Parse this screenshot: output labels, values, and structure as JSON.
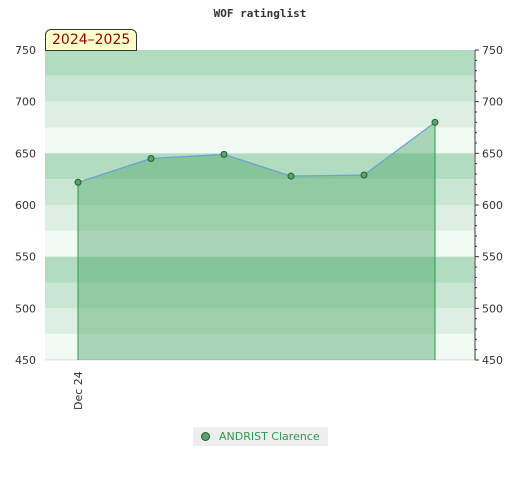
{
  "chart_data": {
    "type": "area",
    "title": "WOF ratinglist",
    "season_label": "2024–2025",
    "ylim": [
      450,
      750
    ],
    "y_ticks": [
      450,
      500,
      550,
      600,
      650,
      700,
      750
    ],
    "x_tick_labels": [
      "Dec 24"
    ],
    "series": [
      {
        "name": "ANDRIST Clarence",
        "values": [
          622,
          645,
          649,
          628,
          629,
          680
        ]
      }
    ],
    "legend_position": "bottom-center",
    "colors": {
      "line": "#6a9fd8",
      "area": "#4fa86a",
      "marker": "#4fa86a",
      "legend_text": "#2e9a4f"
    }
  }
}
